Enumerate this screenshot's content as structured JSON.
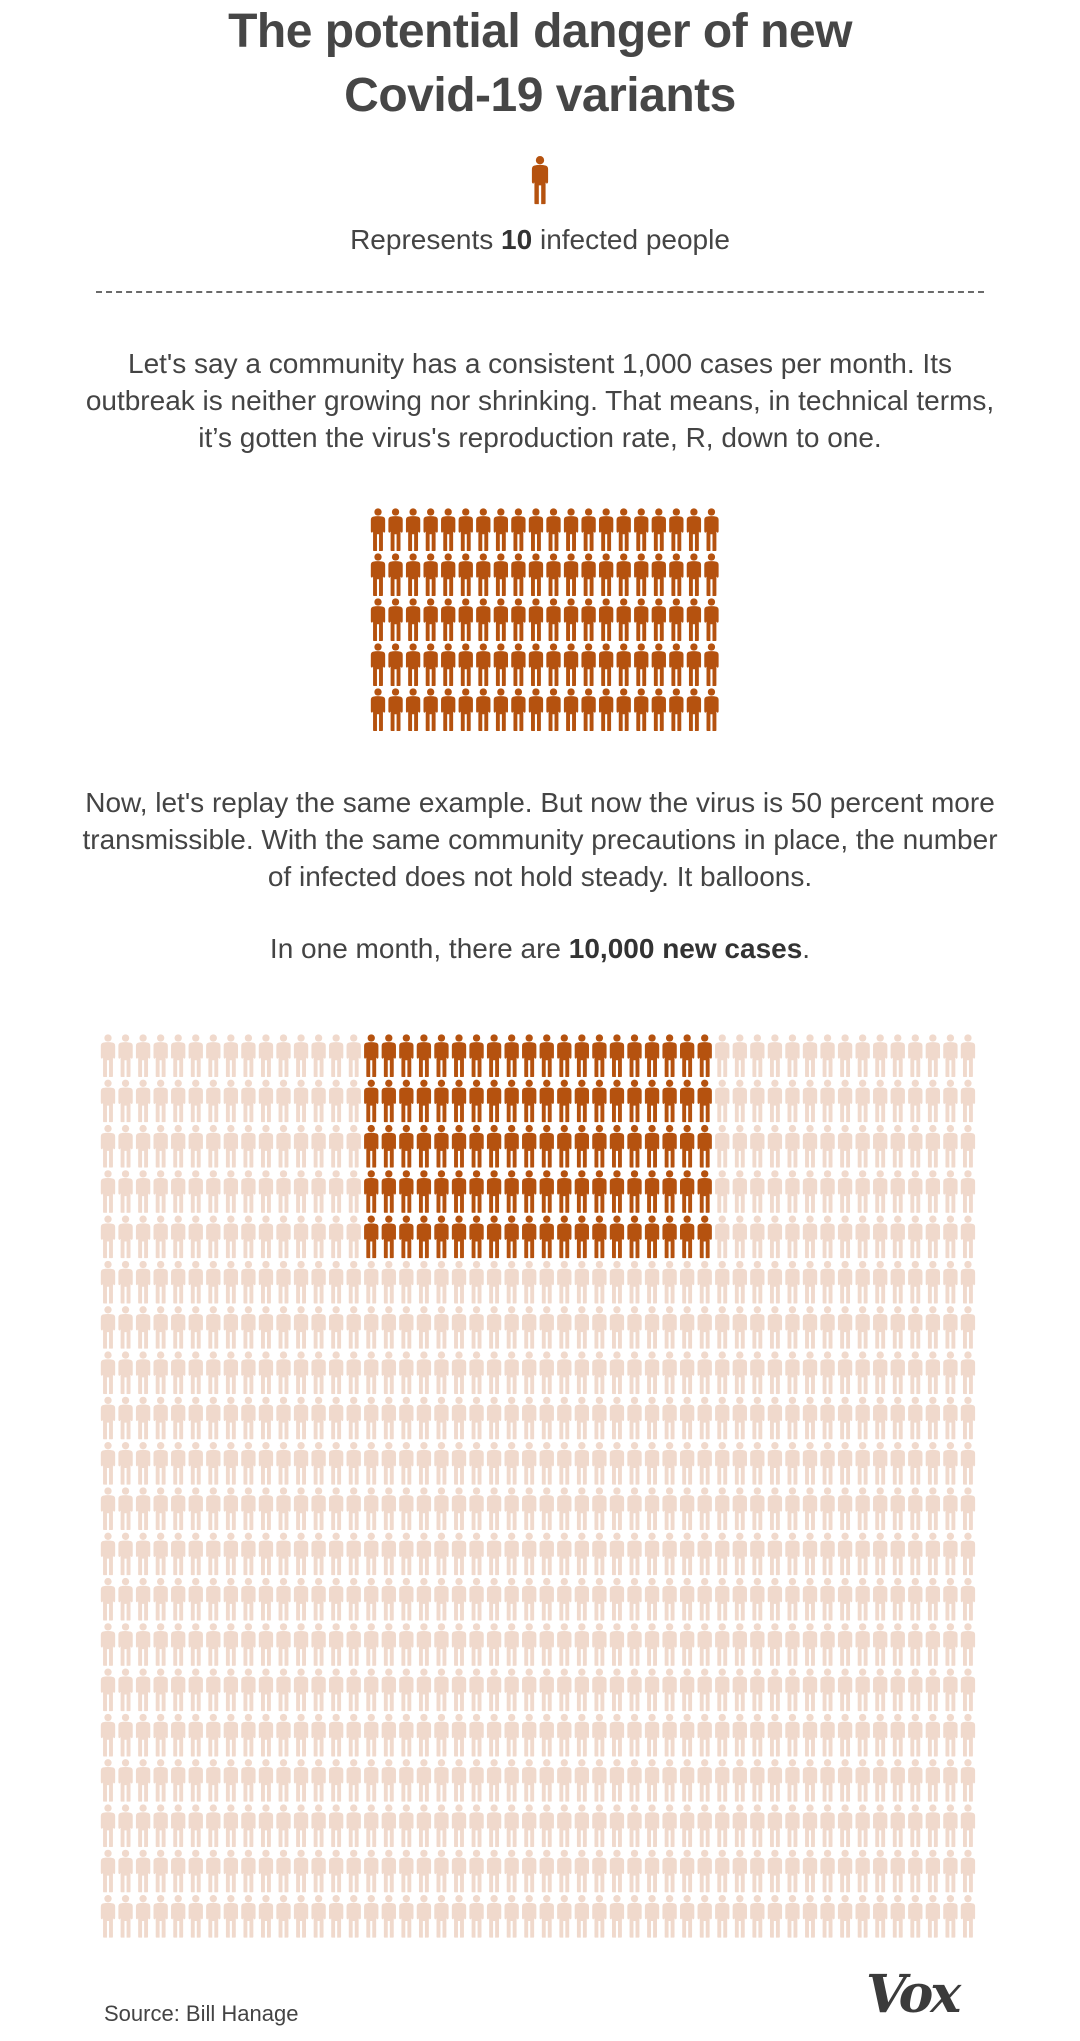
{
  "title_line1": "The potential danger of new",
  "title_line2": "Covid-19 variants",
  "legend": {
    "pre": "Represents ",
    "value": "10",
    "post": " infected people"
  },
  "para1": "Let's say a community has a consistent 1,000 cases per month. Its outbreak is neither growing nor shrinking. That means, in technical terms, it’s gotten the virus's reproduction rate, R, down to one.",
  "para2": "Now, let's replay the same example. But now the virus is 50 percent more transmissible. With the same community precautions in place, the number of infected does not hold steady. It balloons.",
  "para3": {
    "pre": "In one month, there are ",
    "bold": "10,000 new cases",
    "post": "."
  },
  "source": "Source: Bill Hanage",
  "logo": "Vox",
  "colors": {
    "highlight": "#b5520f",
    "faded": "#f0d9cc",
    "text": "#444444"
  },
  "chart_data": [
    {
      "type": "pictogram",
      "unit_people_per_icon": 10,
      "cases": 1000,
      "icons": 100,
      "rows": 5,
      "cols": 20
    },
    {
      "type": "pictogram",
      "unit_people_per_icon": 10,
      "cases": 10000,
      "icons": 1000,
      "highlighted_icons": 100,
      "rows": 20,
      "cols": 50,
      "highlight_block": {
        "rows": [
          0,
          4
        ],
        "cols": [
          15,
          34
        ]
      }
    }
  ]
}
